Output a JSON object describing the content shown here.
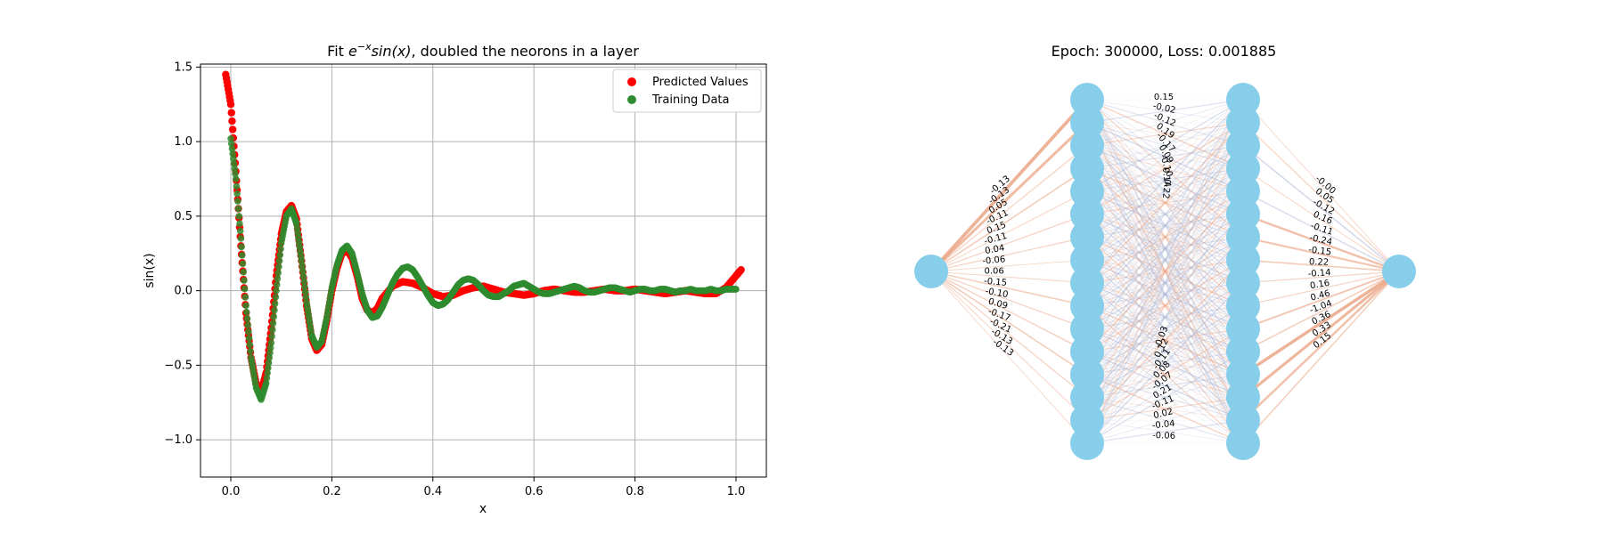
{
  "chart_data": [
    {
      "type": "scatter",
      "title_prefix": "Fit ",
      "title_math_base": "e",
      "title_math_sup": "−x",
      "title_math_func": "sin(x)",
      "title_suffix": ", doubled the neorons in a layer",
      "xlabel": "x",
      "ylabel": "sin(x)",
      "xlim": [
        -0.06,
        1.06
      ],
      "ylim": [
        -1.25,
        1.52
      ],
      "xticks": [
        0.0,
        0.2,
        0.4,
        0.6,
        0.8,
        1.0
      ],
      "xtick_labels": [
        "0.0",
        "0.2",
        "0.4",
        "0.6",
        "0.8",
        "1.0"
      ],
      "yticks": [
        -1.0,
        -0.5,
        0.0,
        0.5,
        1.0,
        1.5
      ],
      "ytick_labels": [
        "−1.0",
        "−0.5",
        "0.0",
        "0.5",
        "1.0",
        "1.5"
      ],
      "grid": true,
      "legend_position": "top-right",
      "series": [
        {
          "name": "Predicted Values",
          "color": "#ff0000",
          "x": [
            -0.01,
            0.0,
            0.01,
            0.02,
            0.03,
            0.04,
            0.05,
            0.06,
            0.07,
            0.08,
            0.09,
            0.1,
            0.11,
            0.12,
            0.13,
            0.14,
            0.15,
            0.16,
            0.17,
            0.18,
            0.19,
            0.2,
            0.21,
            0.22,
            0.23,
            0.24,
            0.25,
            0.26,
            0.27,
            0.28,
            0.29,
            0.3,
            0.32,
            0.34,
            0.36,
            0.38,
            0.4,
            0.42,
            0.44,
            0.46,
            0.48,
            0.5,
            0.52,
            0.54,
            0.56,
            0.58,
            0.6,
            0.62,
            0.64,
            0.66,
            0.68,
            0.7,
            0.72,
            0.74,
            0.76,
            0.78,
            0.8,
            0.82,
            0.84,
            0.86,
            0.88,
            0.9,
            0.92,
            0.94,
            0.96,
            0.98,
            1.0,
            1.01
          ],
          "y": [
            1.45,
            1.25,
            0.8,
            0.3,
            -0.15,
            -0.45,
            -0.62,
            -0.68,
            -0.55,
            -0.25,
            0.1,
            0.38,
            0.53,
            0.57,
            0.48,
            0.2,
            -0.1,
            -0.32,
            -0.4,
            -0.36,
            -0.2,
            0.0,
            0.15,
            0.25,
            0.27,
            0.22,
            0.1,
            -0.05,
            -0.13,
            -0.15,
            -0.12,
            -0.05,
            0.03,
            0.06,
            0.05,
            0.02,
            -0.02,
            -0.04,
            -0.03,
            0.0,
            0.02,
            0.03,
            0.01,
            -0.01,
            -0.02,
            -0.03,
            -0.02,
            0.0,
            0.01,
            0.0,
            -0.01,
            -0.01,
            0.0,
            0.01,
            0.0,
            0.0,
            0.01,
            0.0,
            -0.01,
            -0.02,
            -0.01,
            0.0,
            -0.01,
            -0.02,
            -0.02,
            0.02,
            0.1,
            0.14
          ]
        },
        {
          "name": "Training Data",
          "color": "#2e8b2e",
          "x": [
            0.0,
            0.01,
            0.02,
            0.03,
            0.04,
            0.05,
            0.06,
            0.07,
            0.08,
            0.09,
            0.1,
            0.11,
            0.12,
            0.13,
            0.14,
            0.15,
            0.16,
            0.17,
            0.18,
            0.19,
            0.2,
            0.21,
            0.22,
            0.23,
            0.24,
            0.25,
            0.26,
            0.27,
            0.28,
            0.29,
            0.3,
            0.31,
            0.32,
            0.33,
            0.34,
            0.35,
            0.36,
            0.37,
            0.38,
            0.39,
            0.4,
            0.41,
            0.42,
            0.43,
            0.44,
            0.45,
            0.46,
            0.47,
            0.48,
            0.49,
            0.5,
            0.51,
            0.52,
            0.53,
            0.54,
            0.55,
            0.56,
            0.57,
            0.58,
            0.59,
            0.6,
            0.61,
            0.62,
            0.63,
            0.64,
            0.65,
            0.66,
            0.67,
            0.68,
            0.69,
            0.7,
            0.71,
            0.72,
            0.73,
            0.74,
            0.75,
            0.76,
            0.77,
            0.78,
            0.79,
            0.8,
            0.81,
            0.82,
            0.83,
            0.84,
            0.85,
            0.86,
            0.87,
            0.88,
            0.89,
            0.9,
            0.91,
            0.92,
            0.93,
            0.94,
            0.95,
            0.96,
            0.97,
            0.98,
            0.99,
            1.0
          ],
          "y": [
            1.02,
            0.75,
            0.35,
            -0.1,
            -0.45,
            -0.65,
            -0.73,
            -0.62,
            -0.35,
            0.0,
            0.32,
            0.5,
            0.55,
            0.45,
            0.2,
            -0.08,
            -0.3,
            -0.38,
            -0.34,
            -0.18,
            0.02,
            0.17,
            0.27,
            0.3,
            0.25,
            0.12,
            -0.02,
            -0.13,
            -0.18,
            -0.17,
            -0.11,
            -0.03,
            0.05,
            0.11,
            0.15,
            0.16,
            0.14,
            0.09,
            0.03,
            -0.03,
            -0.08,
            -0.1,
            -0.09,
            -0.06,
            -0.01,
            0.04,
            0.07,
            0.08,
            0.07,
            0.04,
            0.0,
            -0.03,
            -0.04,
            -0.04,
            -0.02,
            0.0,
            0.03,
            0.04,
            0.05,
            0.03,
            0.01,
            -0.01,
            -0.02,
            -0.02,
            -0.01,
            0.0,
            0.01,
            0.02,
            0.03,
            0.02,
            0.0,
            -0.01,
            -0.01,
            0.0,
            0.01,
            0.02,
            0.02,
            0.01,
            0.0,
            -0.01,
            0.0,
            0.01,
            0.01,
            0.0,
            0.0,
            0.01,
            0.01,
            0.0,
            -0.01,
            0.0,
            0.0,
            0.01,
            0.0,
            0.0,
            0.0,
            0.01,
            0.0,
            0.0,
            0.01,
            0.01,
            0.01
          ]
        }
      ]
    },
    {
      "type": "network",
      "title": "Epoch: 300000, Loss: 0.001885",
      "layers": [
        1,
        16,
        16,
        1
      ],
      "node_color": "#87ceeb",
      "positive_color": "#e9a07e",
      "negative_color": "#a9b4d4",
      "edge_labels_layer1": [
        "-0.13",
        "-0.13",
        "0.05",
        "-0.11",
        "0.15",
        "-0.11",
        "0.04",
        "-0.06",
        "0.06",
        "-0.15",
        "-0.10",
        "0.09",
        "-0.17",
        "-0.21",
        "-0.13",
        "-0.13"
      ],
      "edge_labels_layer2_top": [
        "0.15",
        "-0.02",
        "-0.12",
        "0.19",
        "-0.17",
        "0.09",
        "-0.10",
        "0.14",
        "0.22"
      ],
      "edge_labels_layer2_bottom": [
        "-0.03",
        "0.12",
        "-0.11",
        "0.08",
        "-0.07",
        "0.21",
        "-0.11",
        "0.02",
        "-0.04",
        "-0.06"
      ],
      "edge_labels_layer3": [
        "-0.00",
        "0.05",
        "-0.12",
        "0.16",
        "-0.11",
        "-0.24",
        "-0.15",
        "0.22",
        "-0.14",
        "0.16",
        "0.46",
        "-1.04",
        "0.36",
        "0.33",
        "0.15"
      ],
      "layer1_weights": [
        0.9,
        0.7,
        0.2,
        0.3,
        0.15,
        0.2,
        0.2,
        0.1,
        0.15,
        0.3,
        0.2,
        0.25,
        0.3,
        0.2,
        0.15,
        0.1
      ],
      "layer3_weights": [
        0.1,
        0.2,
        -0.3,
        0.15,
        -0.25,
        0.6,
        0.5,
        0.35,
        0.2,
        0.2,
        0.45,
        0.3,
        0.9,
        0.8,
        0.6,
        0.3
      ]
    }
  ]
}
